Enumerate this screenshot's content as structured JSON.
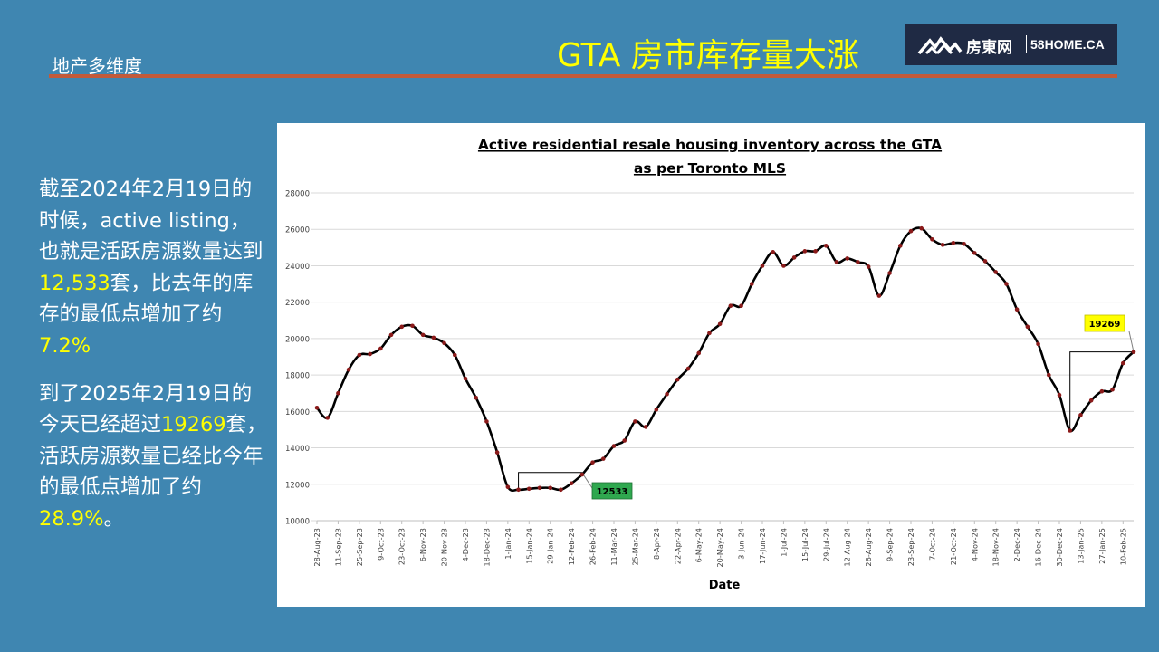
{
  "header": {
    "section_label": "地产多维度",
    "title": "GTA 房市库存量大涨"
  },
  "logo": {
    "name": "房東网",
    "site": "58HOME.CA"
  },
  "text_panel": {
    "para1": [
      {
        "text": "截至2024年2月19日的时候，active listing，也就是活跃房源数量达到",
        "highlight": false
      },
      {
        "text": "12,533",
        "highlight": true
      },
      {
        "text": "套，比去年的库存的最低点增加了约",
        "highlight": false
      },
      {
        "text": "7.2%",
        "highlight": true
      }
    ],
    "para2": [
      {
        "text": "到了2025年2月19日的今天已经超过",
        "highlight": false
      },
      {
        "text": "19269",
        "highlight": true
      },
      {
        "text": "套，活跃房源数量已经比今年的最低点增加了约",
        "highlight": false
      },
      {
        "text": "28.9%",
        "highlight": true
      },
      {
        "text": "。",
        "highlight": false
      }
    ],
    "highlight_color": "#ffff00"
  },
  "chart_data": {
    "type": "line",
    "title_line1": "Active residential resale housing inventory across the GTA",
    "title_line2": "as per Toronto MLS",
    "xlabel": "Date",
    "ylabel": "",
    "ylim": [
      10000,
      28000
    ],
    "yticks": [
      10000,
      12000,
      14000,
      16000,
      18000,
      20000,
      22000,
      24000,
      26000,
      28000
    ],
    "ytick_labels": [
      "10000",
      "12000",
      "14000",
      "16000",
      "18000",
      "20000",
      "22000",
      "24000",
      "26000",
      "28000"
    ],
    "xtick_labels": [
      "28-Aug-23",
      "11-Sep-23",
      "25-Sep-23",
      "9-Oct-23",
      "23-Oct-23",
      "6-Nov-23",
      "20-Nov-23",
      "4-Dec-23",
      "18-Dec-23",
      "1-Jan-24",
      "15-Jan-24",
      "29-Jan-24",
      "12-Feb-24",
      "26-Feb-24",
      "11-Mar-24",
      "25-Mar-24",
      "8-Apr-24",
      "22-Apr-24",
      "6-May-24",
      "20-May-24",
      "3-Jun-24",
      "17-Jun-24",
      "1-Jul-24",
      "15-Jul-24",
      "29-Jul-24",
      "12-Aug-24",
      "26-Aug-24",
      "9-Sep-24",
      "23-Sep-24",
      "7-Oct-24",
      "21-Oct-24",
      "4-Nov-24",
      "18-Nov-24",
      "2-Dec-24",
      "16-Dec-24",
      "30-Dec-24",
      "13-Jan-25",
      "27-Jan-25",
      "10-Feb-25"
    ],
    "grid": true,
    "series": [
      {
        "values": [
          16200,
          15650,
          17000,
          18300,
          19100,
          19150,
          19450,
          20200,
          20650,
          20700,
          20200,
          20050,
          19750,
          19100,
          17800,
          16750,
          15450,
          13750,
          11850,
          11700,
          11750,
          11800,
          11800,
          11700,
          12050,
          12533,
          13200,
          13400,
          14100,
          14400,
          15450,
          15150,
          16100,
          16950,
          17750,
          18350,
          19200,
          20300,
          20800,
          21800,
          21800,
          23000,
          24000,
          24750,
          24000,
          24450,
          24800,
          24800,
          25100,
          24200,
          24400,
          24200,
          23950,
          22350,
          23600,
          25100,
          25900,
          26050,
          25450,
          25150,
          25250,
          25200,
          24700,
          24250,
          23650,
          23000,
          21600,
          20650,
          19700,
          18000,
          16900,
          14950,
          15800,
          16600,
          17100,
          17200,
          18650,
          19269
        ],
        "line_color": "#000000",
        "marker_color": "#8b1a1a"
      }
    ],
    "annotations": [
      {
        "text": "12533",
        "fill": "#2fa84f",
        "text_color": "#000000"
      },
      {
        "text": "19269",
        "fill": "#ffff00",
        "text_color": "#000000"
      }
    ]
  }
}
